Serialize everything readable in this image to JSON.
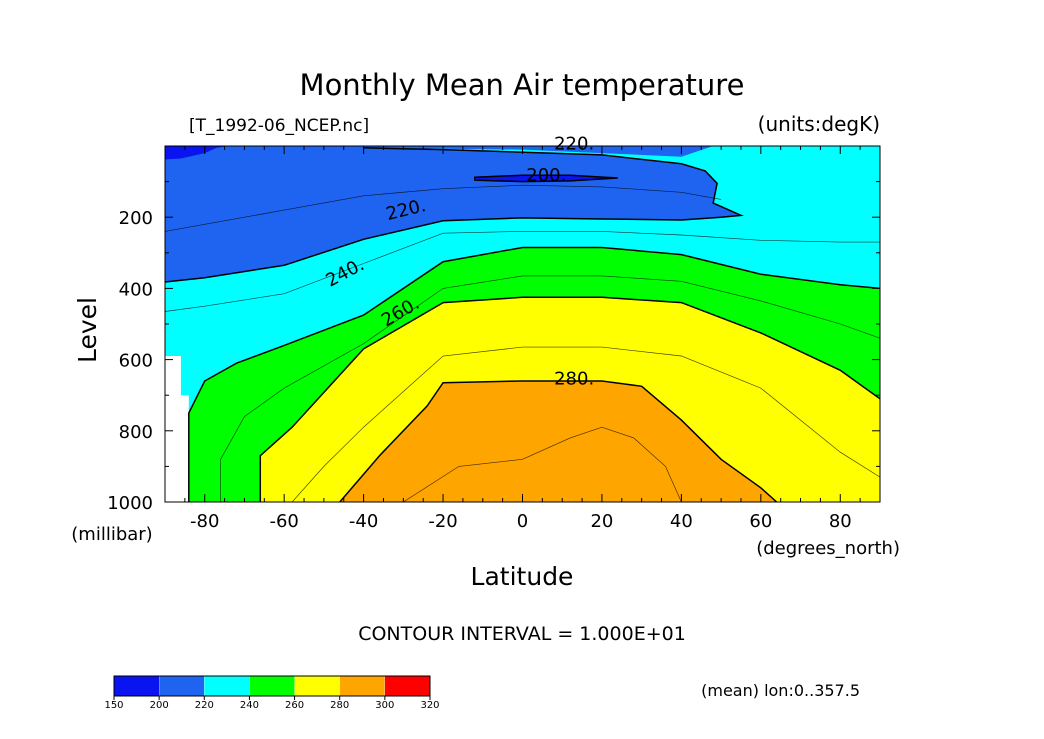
{
  "chart_data": {
    "type": "heatmap",
    "title": "Monthly Mean Air temperature",
    "dataset_label": "[T_1992-06_NCEP.nc]",
    "units_label": "(units:degK)",
    "xlabel": "Latitude",
    "xunits": "(degrees_north)",
    "ylabel": "Level",
    "yunits": "(millibar)",
    "xlim": [
      -90,
      90
    ],
    "ylim": [
      1000,
      0
    ],
    "x_ticks": [
      "-80",
      "-60",
      "-40",
      "-20",
      "0",
      "20",
      "40",
      "60",
      "80"
    ],
    "y_ticks": [
      "200",
      "400",
      "600",
      "800",
      "1000"
    ],
    "contour_interval_text": "CONTOUR INTERVAL = 1.000E+01",
    "footer_note": "(mean) lon:0..357.5",
    "contour_labels": [
      "220.",
      "200.",
      "220.",
      "240.",
      "260.",
      "280."
    ],
    "colorbar": {
      "levels": [
        "150",
        "200",
        "220",
        "240",
        "260",
        "280",
        "300",
        "320"
      ],
      "colors": [
        "#0a14f0",
        "#1e64f0",
        "#00ffff",
        "#00ff00",
        "#ffff00",
        "#ffa500",
        "#ff0000"
      ]
    },
    "estimated_boundaries": {
      "t200": {
        "points": [
          [
            -12,
            88
          ],
          [
            0,
            82
          ],
          [
            12,
            82
          ],
          [
            24,
            90
          ],
          [
            12,
            98
          ],
          [
            0,
            100
          ],
          [
            -12,
            96
          ]
        ]
      },
      "t220": {
        "points": [
          [
            -90,
            382
          ],
          [
            -80,
            370
          ],
          [
            -60,
            335
          ],
          [
            -40,
            262
          ],
          [
            -20,
            210
          ],
          [
            0,
            202
          ],
          [
            20,
            205
          ],
          [
            40,
            208
          ],
          [
            50,
            200
          ],
          [
            55,
            195
          ],
          [
            52,
            180
          ],
          [
            48,
            160
          ],
          [
            49,
            105
          ],
          [
            46,
            70
          ],
          [
            40,
            50
          ],
          [
            20,
            25
          ],
          [
            -20,
            10
          ],
          [
            -40,
            5
          ]
        ]
      },
      "t240": {
        "points": [
          [
            -84,
            1000
          ],
          [
            -84,
            750
          ],
          [
            -80,
            660
          ],
          [
            -72,
            610
          ],
          [
            -60,
            560
          ],
          [
            -40,
            475
          ],
          [
            -20,
            325
          ],
          [
            0,
            285
          ],
          [
            20,
            285
          ],
          [
            40,
            305
          ],
          [
            60,
            360
          ],
          [
            80,
            390
          ],
          [
            90,
            400
          ]
        ]
      },
      "t260": {
        "points": [
          [
            -66,
            1000
          ],
          [
            -66,
            870
          ],
          [
            -58,
            790
          ],
          [
            -40,
            570
          ],
          [
            -20,
            440
          ],
          [
            0,
            425
          ],
          [
            20,
            425
          ],
          [
            40,
            440
          ],
          [
            60,
            525
          ],
          [
            80,
            630
          ],
          [
            90,
            710
          ]
        ]
      },
      "t280": {
        "points": [
          [
            -46,
            1000
          ],
          [
            -36,
            870
          ],
          [
            -24,
            730
          ],
          [
            -20,
            665
          ],
          [
            0,
            660
          ],
          [
            20,
            660
          ],
          [
            30,
            675
          ],
          [
            40,
            770
          ],
          [
            50,
            880
          ],
          [
            60,
            960
          ],
          [
            64,
            1000
          ]
        ]
      },
      "thin_lines": [
        [
          [
            -90,
            240
          ],
          [
            -80,
            220
          ],
          [
            -60,
            180
          ],
          [
            -40,
            140
          ],
          [
            -20,
            120
          ],
          [
            0,
            110
          ],
          [
            20,
            115
          ],
          [
            40,
            130
          ],
          [
            50,
            150
          ]
        ],
        [
          [
            -90,
            465
          ],
          [
            -80,
            450
          ],
          [
            -60,
            415
          ],
          [
            -40,
            330
          ],
          [
            -20,
            245
          ],
          [
            0,
            240
          ],
          [
            20,
            240
          ],
          [
            40,
            250
          ],
          [
            60,
            265
          ],
          [
            80,
            270
          ],
          [
            90,
            270
          ]
        ],
        [
          [
            -76,
            1000
          ],
          [
            -76,
            880
          ],
          [
            -70,
            760
          ],
          [
            -60,
            680
          ],
          [
            -40,
            555
          ],
          [
            -20,
            400
          ],
          [
            0,
            365
          ],
          [
            20,
            365
          ],
          [
            40,
            380
          ],
          [
            60,
            435
          ],
          [
            80,
            500
          ],
          [
            90,
            540
          ]
        ],
        [
          [
            -58,
            1000
          ],
          [
            -50,
            900
          ],
          [
            -40,
            790
          ],
          [
            -30,
            690
          ],
          [
            -20,
            590
          ],
          [
            0,
            565
          ],
          [
            20,
            565
          ],
          [
            40,
            590
          ],
          [
            60,
            680
          ],
          [
            80,
            860
          ],
          [
            90,
            930
          ]
        ],
        [
          [
            -30,
            1000
          ],
          [
            -16,
            900
          ],
          [
            0,
            880
          ],
          [
            12,
            820
          ],
          [
            20,
            790
          ],
          [
            28,
            820
          ],
          [
            36,
            900
          ],
          [
            40,
            1000
          ]
        ]
      ]
    }
  }
}
